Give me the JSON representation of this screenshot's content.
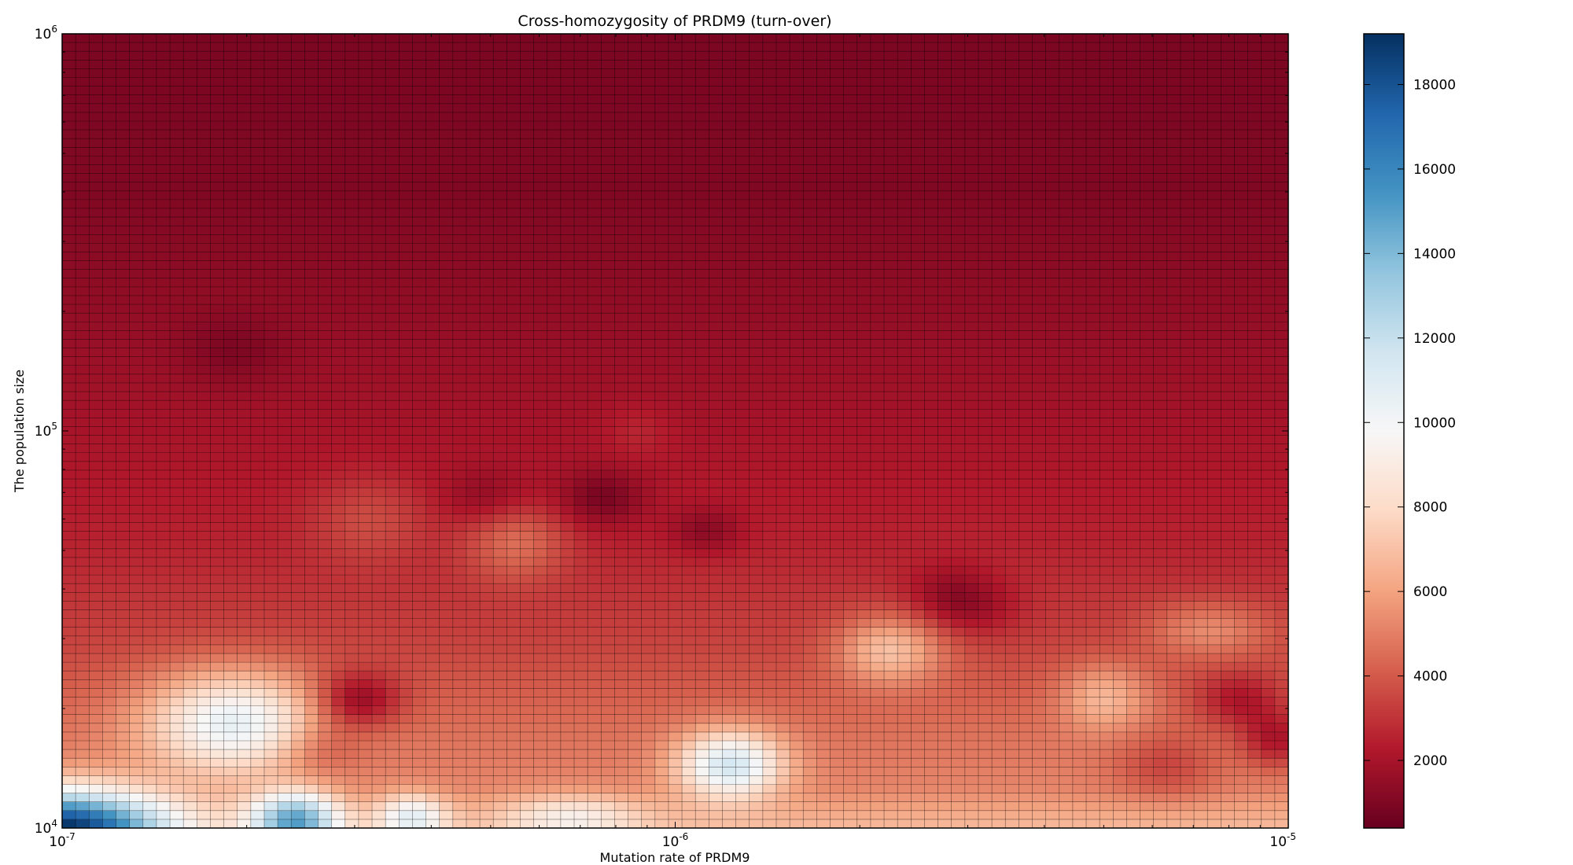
{
  "chart_data": {
    "type": "heatmap",
    "title": "Cross-homozygosity of PRDM9 (turn-over)",
    "xlabel": "Mutation rate of PRDM9",
    "ylabel": "The population size",
    "x_scale": "log",
    "y_scale": "log",
    "xlim": [
      1e-07,
      1e-05
    ],
    "ylim": [
      10000,
      1000000
    ],
    "x_ticks": [
      {
        "value": 1e-07,
        "base": "10",
        "exp": "-7"
      },
      {
        "value": 1e-06,
        "base": "10",
        "exp": "-6"
      },
      {
        "value": 1e-05,
        "base": "10",
        "exp": "-5"
      }
    ],
    "y_ticks": [
      {
        "value": 10000,
        "base": "10",
        "exp": "4"
      },
      {
        "value": 100000,
        "base": "10",
        "exp": "5"
      },
      {
        "value": 1000000,
        "base": "10",
        "exp": "6"
      }
    ],
    "grid_cells": {
      "nx": 91,
      "ny": 91
    },
    "colormap": "RdBu",
    "colormap_stops": [
      "#67001f",
      "#b2182b",
      "#d6604d",
      "#f4a582",
      "#fddbc7",
      "#f7f7f7",
      "#d1e5f0",
      "#92c5de",
      "#4393c3",
      "#2166ac",
      "#053061"
    ],
    "colorbar": {
      "vmin": 400,
      "vmax": 19200,
      "ticks": [
        2000,
        4000,
        6000,
        8000,
        10000,
        12000,
        14000,
        16000,
        18000
      ]
    },
    "cell_edge_color": "#000000",
    "field": {
      "base": [
        {
          "log_y": 4.0,
          "value": 6800
        },
        {
          "log_y": 4.1,
          "value": 5200
        },
        {
          "log_y": 4.25,
          "value": 4600
        },
        {
          "log_y": 4.45,
          "value": 3500
        },
        {
          "log_y": 4.7,
          "value": 2600
        },
        {
          "log_y": 5.0,
          "value": 2000
        },
        {
          "log_y": 5.3,
          "value": 1500
        },
        {
          "log_y": 5.6,
          "value": 1050
        },
        {
          "log_y": 6.0,
          "value": 900
        }
      ],
      "bumps": [
        {
          "log_x": -7.0,
          "log_y": 4.0,
          "sx": 0.12,
          "sy": 0.07,
          "value": 12500
        },
        {
          "log_x": -6.72,
          "log_y": 4.27,
          "sx": 0.1,
          "sy": 0.09,
          "value": 6000
        },
        {
          "log_x": -6.62,
          "log_y": 4.02,
          "sx": 0.05,
          "sy": 0.05,
          "value": 8500
        },
        {
          "log_x": -6.43,
          "log_y": 4.03,
          "sx": 0.04,
          "sy": 0.04,
          "value": 4500
        },
        {
          "log_x": -6.17,
          "log_y": 4.03,
          "sx": 0.08,
          "sy": 0.04,
          "value": 3000
        },
        {
          "log_x": -6.52,
          "log_y": 4.32,
          "sx": 0.05,
          "sy": 0.05,
          "value": -3000
        },
        {
          "log_x": -5.91,
          "log_y": 4.16,
          "sx": 0.06,
          "sy": 0.06,
          "value": 6500
        },
        {
          "log_x": -5.65,
          "log_y": 4.45,
          "sx": 0.06,
          "sy": 0.06,
          "value": 3500
        },
        {
          "log_x": -5.3,
          "log_y": 4.33,
          "sx": 0.05,
          "sy": 0.06,
          "value": 2500
        },
        {
          "log_x": -5.13,
          "log_y": 4.5,
          "sx": 0.07,
          "sy": 0.05,
          "value": 2000
        },
        {
          "log_x": -6.26,
          "log_y": 4.72,
          "sx": 0.06,
          "sy": 0.07,
          "value": 2000
        },
        {
          "log_x": -6.5,
          "log_y": 4.78,
          "sx": 0.07,
          "sy": 0.08,
          "value": 1200
        },
        {
          "log_x": -6.58,
          "log_y": 4.2,
          "sx": 0.05,
          "sy": 0.05,
          "value": -1500
        },
        {
          "log_x": -5.2,
          "log_y": 4.15,
          "sx": 0.06,
          "sy": 0.06,
          "value": -1500
        },
        {
          "log_x": -5.08,
          "log_y": 4.32,
          "sx": 0.05,
          "sy": 0.05,
          "value": -2000
        },
        {
          "log_x": -6.12,
          "log_y": 4.83,
          "sx": 0.05,
          "sy": 0.05,
          "value": -1500
        },
        {
          "log_x": -6.31,
          "log_y": 4.83,
          "sx": 0.05,
          "sy": 0.05,
          "value": -1000
        },
        {
          "log_x": -5.02,
          "log_y": 4.22,
          "sx": 0.04,
          "sy": 0.05,
          "value": -2500
        },
        {
          "log_x": -5.55,
          "log_y": 4.6,
          "sx": 0.05,
          "sy": 0.05,
          "value": -1000
        },
        {
          "log_x": -5.95,
          "log_y": 4.75,
          "sx": 0.04,
          "sy": 0.04,
          "value": -1200
        },
        {
          "log_x": -6.72,
          "log_y": 5.2,
          "sx": 0.06,
          "sy": 0.06,
          "value": -700
        },
        {
          "log_x": -6.06,
          "log_y": 5.0,
          "sx": 0.04,
          "sy": 0.05,
          "value": 600
        },
        {
          "log_x": -5.52,
          "log_y": 4.55,
          "sx": 0.06,
          "sy": 0.05,
          "value": -1200
        }
      ]
    }
  }
}
